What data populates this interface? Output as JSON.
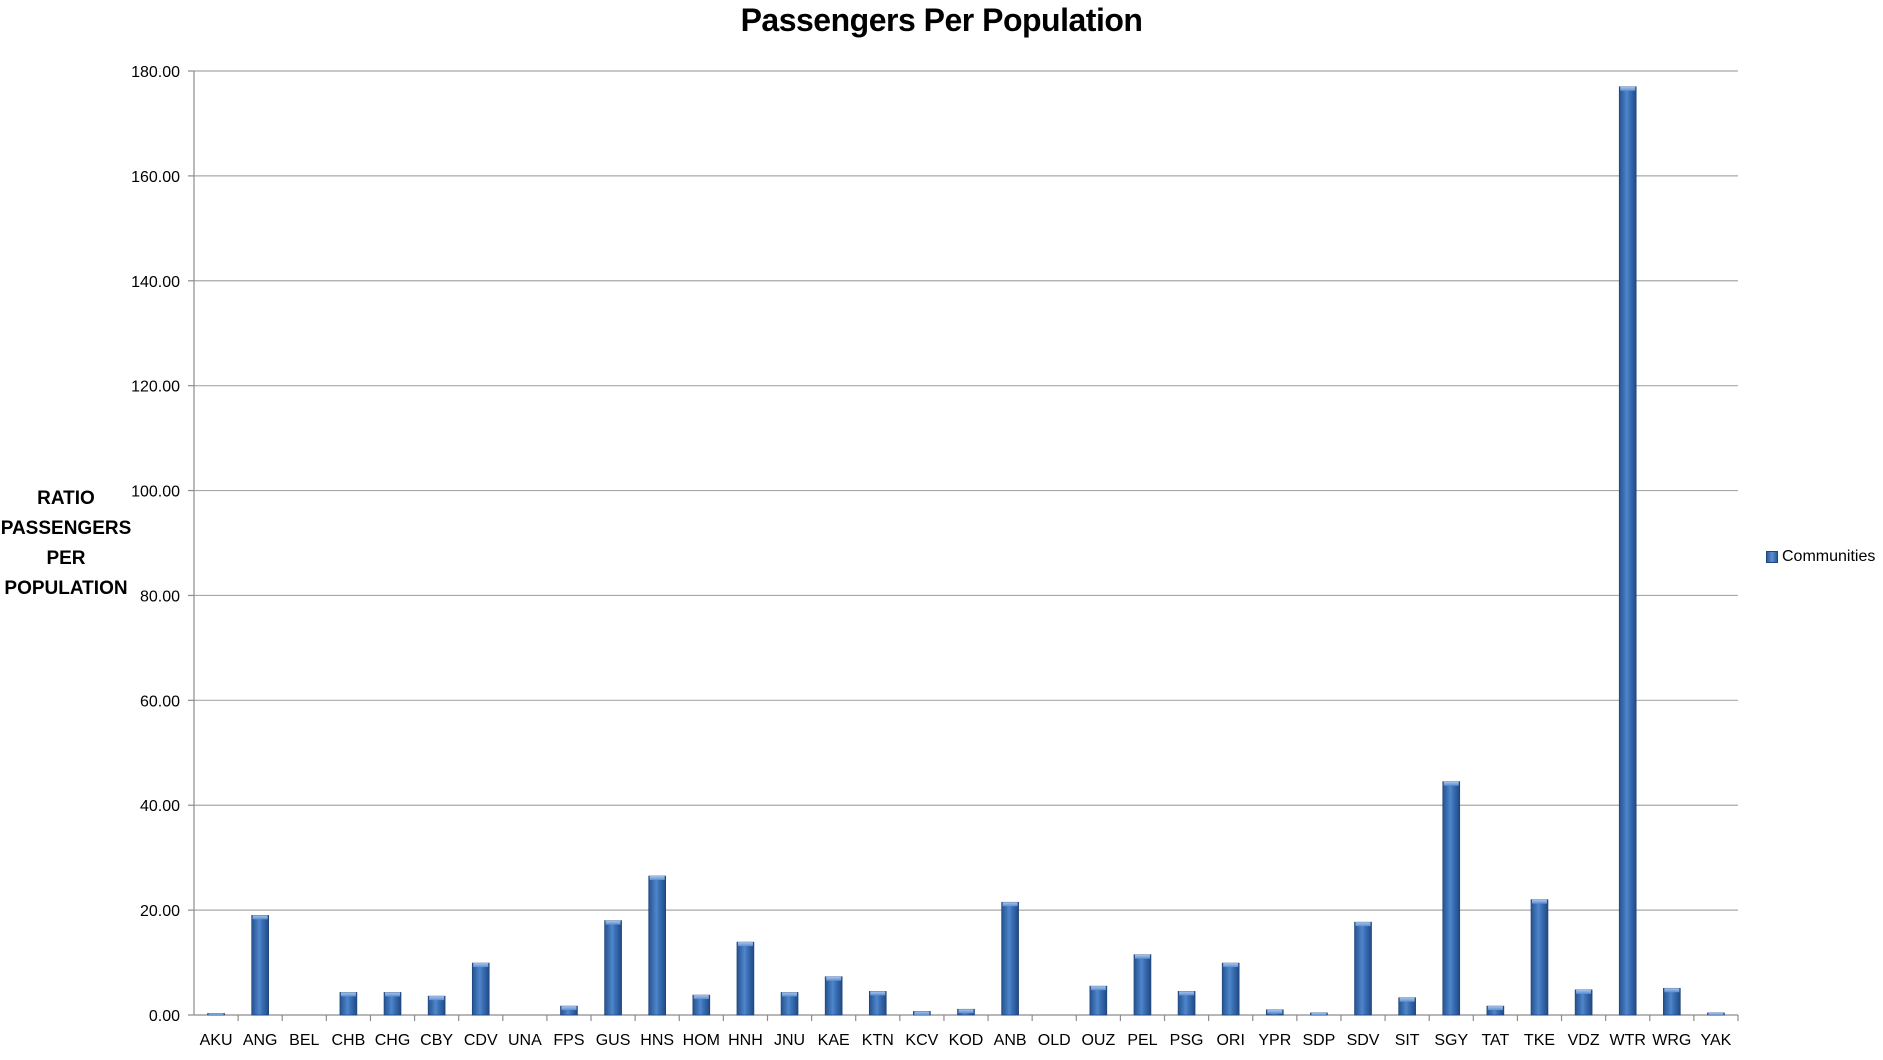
{
  "chart_data": {
    "type": "bar",
    "title": "Passengers Per Population",
    "ylabel_lines": [
      "RATIO",
      "PASSENGERS",
      "PER",
      "POPULATION"
    ],
    "xlabel": "",
    "ylim": [
      0,
      180
    ],
    "y_ticks": [
      "0.00",
      "20.00",
      "40.00",
      "60.00",
      "80.00",
      "100.00",
      "120.00",
      "140.00",
      "160.00",
      "180.00"
    ],
    "grid": "horizontal",
    "legend_position": "right",
    "categories": [
      "AKU",
      "ANG",
      "BEL",
      "CHB",
      "CHG",
      "CBY",
      "CDV",
      "UNA",
      "FPS",
      "GUS",
      "HNS",
      "HOM",
      "HNH",
      "JNU",
      "KAE",
      "KTN",
      "KCV",
      "KOD",
      "ANB",
      "OLD",
      "OUZ",
      "PEL",
      "PSG",
      "ORI",
      "YPR",
      "SDP",
      "SDV",
      "SIT",
      "SGY",
      "TAT",
      "TKE",
      "VDZ",
      "WTR",
      "WRG",
      "YAK"
    ],
    "series": [
      {
        "name": "Communities",
        "color": "#3a6db3",
        "values": [
          0.3,
          19,
          0,
          4.3,
          4.3,
          3.6,
          9.9,
          0,
          1.7,
          18,
          26.5,
          3.8,
          13.9,
          4.3,
          7.3,
          4.5,
          0.7,
          1.1,
          21.5,
          0,
          5.5,
          11.5,
          4.5,
          9.9,
          1.0,
          0.4,
          17.7,
          3.3,
          44.5,
          1.7,
          22,
          4.8,
          177,
          5.1,
          0.4
        ]
      }
    ]
  }
}
